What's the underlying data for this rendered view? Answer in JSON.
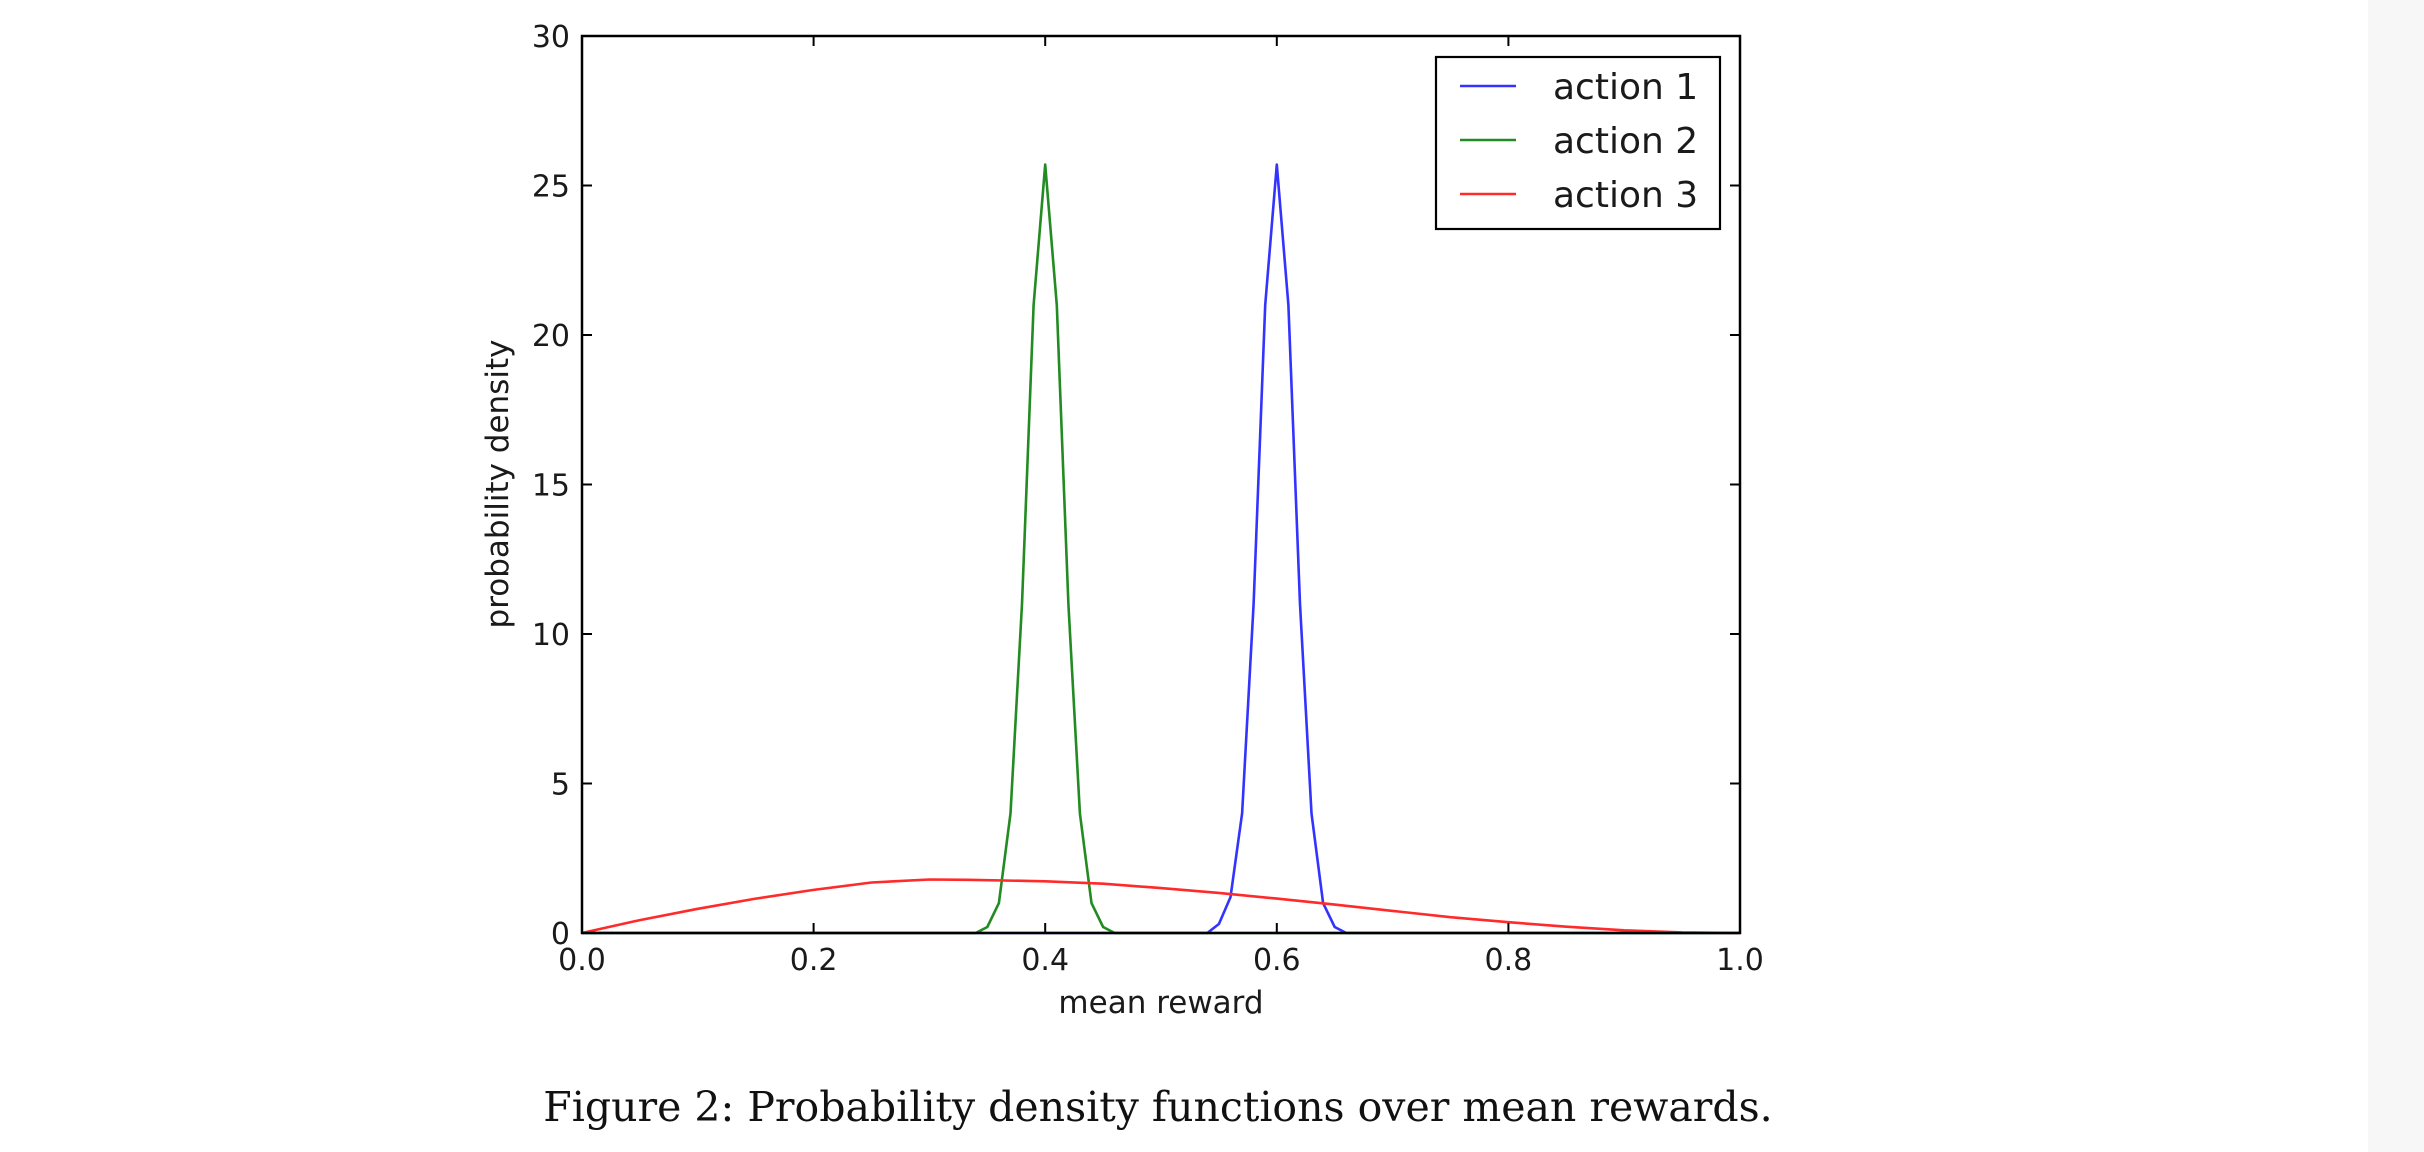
{
  "caption": "Figure 2: Probability density functions over mean rewards.",
  "chart_data": {
    "type": "line",
    "title": "",
    "xlabel": "mean reward",
    "ylabel": "probability density",
    "xlim": [
      0.0,
      1.0
    ],
    "ylim": [
      0,
      30
    ],
    "xticks": [
      "0.0",
      "0.2",
      "0.4",
      "0.6",
      "0.8",
      "1.0"
    ],
    "yticks": [
      "0",
      "5",
      "10",
      "15",
      "20",
      "25",
      "30"
    ],
    "grid": false,
    "legend_position": "top-right",
    "series": [
      {
        "name": "action 1",
        "color": "#3333ff",
        "x": [
          0.0,
          0.54,
          0.55,
          0.56,
          0.57,
          0.58,
          0.59,
          0.6,
          0.61,
          0.62,
          0.63,
          0.64,
          0.65,
          0.66,
          1.0
        ],
        "y": [
          0,
          0,
          0.3,
          1.2,
          4.0,
          11.0,
          21.0,
          25.7,
          21.0,
          11.0,
          4.0,
          1.0,
          0.2,
          0,
          0
        ]
      },
      {
        "name": "action 2",
        "color": "#228b22",
        "x": [
          0.0,
          0.34,
          0.35,
          0.36,
          0.37,
          0.38,
          0.39,
          0.4,
          0.41,
          0.42,
          0.43,
          0.44,
          0.45,
          0.46,
          1.0
        ],
        "y": [
          0,
          0,
          0.2,
          1.0,
          4.0,
          11.0,
          21.0,
          25.7,
          21.0,
          11.0,
          4.0,
          1.0,
          0.2,
          0,
          0
        ]
      },
      {
        "name": "action 3",
        "color": "#ff2a2a",
        "x": [
          0.0,
          0.05,
          0.1,
          0.15,
          0.2,
          0.25,
          0.3,
          0.333,
          0.4,
          0.45,
          0.5,
          0.55,
          0.6,
          0.65,
          0.7,
          0.75,
          0.8,
          0.85,
          0.9,
          0.95,
          1.0
        ],
        "y": [
          0,
          0.43,
          0.81,
          1.15,
          1.44,
          1.69,
          1.79,
          1.78,
          1.73,
          1.65,
          1.5,
          1.34,
          1.15,
          0.95,
          0.74,
          0.53,
          0.36,
          0.21,
          0.09,
          0.02,
          0
        ]
      }
    ]
  }
}
